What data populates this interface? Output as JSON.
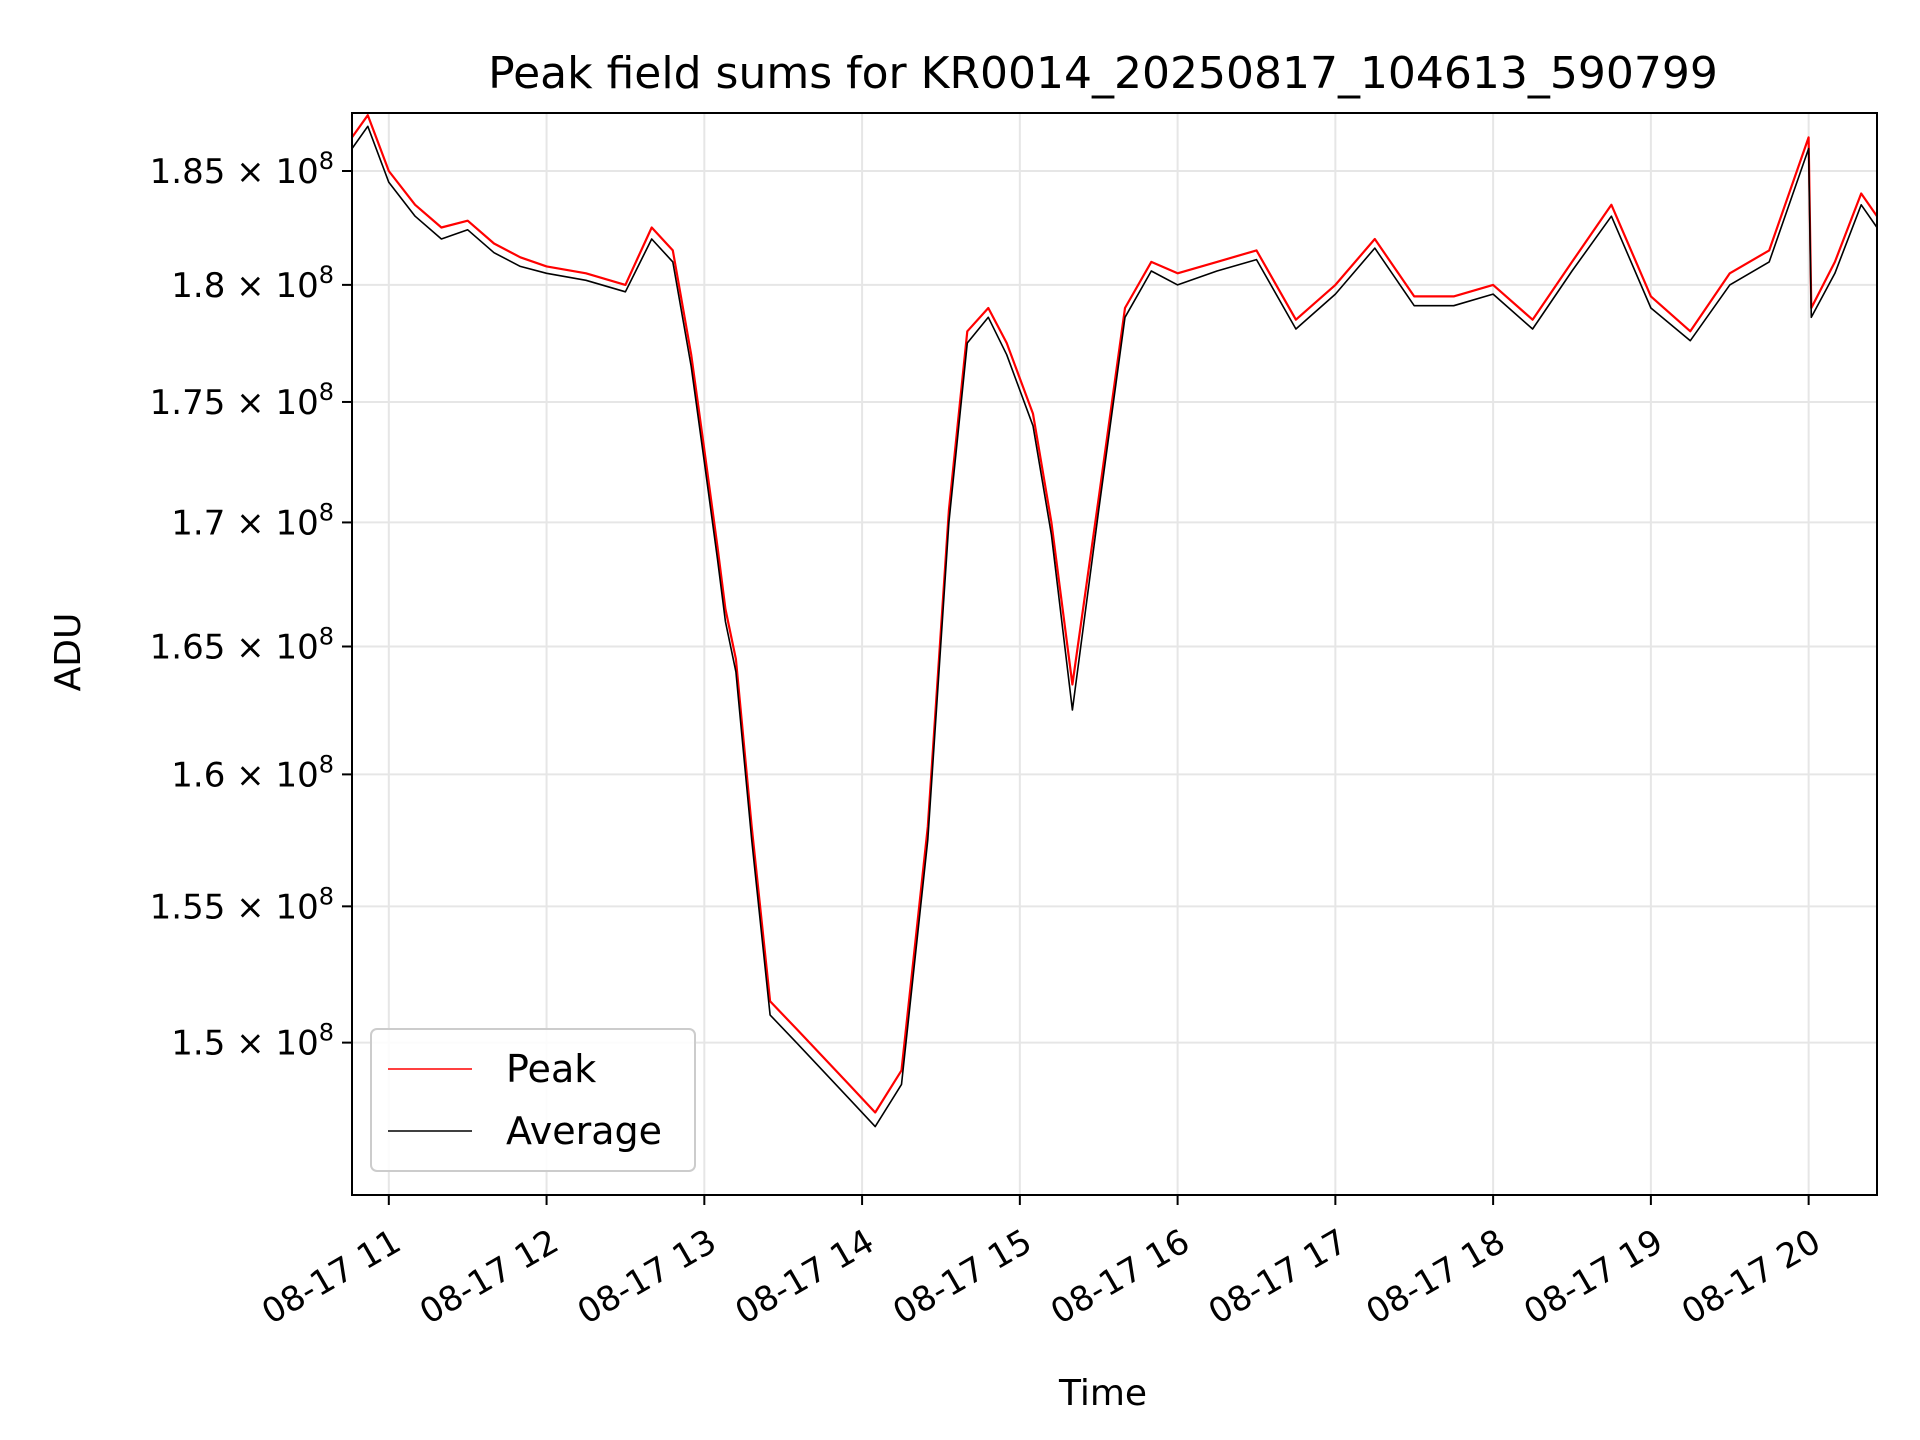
{
  "chart_data": {
    "type": "line",
    "title": "Peak field sums for KR0014_20250817_104613_590799",
    "xlabel": "Time",
    "ylabel": "ADU",
    "x_range": [
      "2025-08-17 10:46",
      "2025-08-17 20:26"
    ],
    "ylim": [
      144600000.0,
      187600000.0
    ],
    "x_tick_labels": [
      "08-17 11",
      "08-17 12",
      "08-17 13",
      "08-17 14",
      "08-17 15",
      "08-17 16",
      "08-17 17",
      "08-17 18",
      "08-17 19",
      "08-17 20"
    ],
    "x_ticks": [
      "2025-08-17 11:00",
      "2025-08-17 12:00",
      "2025-08-17 13:00",
      "2025-08-17 14:00",
      "2025-08-17 15:00",
      "2025-08-17 16:00",
      "2025-08-17 17:00",
      "2025-08-17 18:00",
      "2025-08-17 19:00",
      "2025-08-17 20:00"
    ],
    "y_ticks": [
      {
        "value": 150000000.0,
        "mantissa": "1.5",
        "exp": "8"
      },
      {
        "value": 155000000.0,
        "mantissa": "1.55",
        "exp": "8"
      },
      {
        "value": 160000000.0,
        "mantissa": "1.6",
        "exp": "8"
      },
      {
        "value": 165000000.0,
        "mantissa": "1.65",
        "exp": "8"
      },
      {
        "value": 170000000.0,
        "mantissa": "1.7",
        "exp": "8"
      },
      {
        "value": 175000000.0,
        "mantissa": "1.75",
        "exp": "8"
      },
      {
        "value": 180000000.0,
        "mantissa": "1.8",
        "exp": "8"
      },
      {
        "value": 185000000.0,
        "mantissa": "1.85",
        "exp": "8"
      }
    ],
    "y_scale": "log",
    "grid": true,
    "legend_position": "lower-left",
    "series": [
      {
        "name": "Peak",
        "color": "#ff0000",
        "x": [
          "2025-08-17 10:46",
          "2025-08-17 10:52",
          "2025-08-17 11:00",
          "2025-08-17 11:10",
          "2025-08-17 11:20",
          "2025-08-17 11:30",
          "2025-08-17 11:40",
          "2025-08-17 11:50",
          "2025-08-17 12:00",
          "2025-08-17 12:15",
          "2025-08-17 12:30",
          "2025-08-17 12:40",
          "2025-08-17 12:48",
          "2025-08-17 12:55",
          "2025-08-17 13:00",
          "2025-08-17 13:05",
          "2025-08-17 13:08",
          "2025-08-17 13:12",
          "2025-08-17 13:18",
          "2025-08-17 13:25",
          "2025-08-17 13:35",
          "2025-08-17 13:45",
          "2025-08-17 13:55",
          "2025-08-17 14:05",
          "2025-08-17 14:15",
          "2025-08-17 14:25",
          "2025-08-17 14:33",
          "2025-08-17 14:40",
          "2025-08-17 14:48",
          "2025-08-17 14:55",
          "2025-08-17 15:05",
          "2025-08-17 15:12",
          "2025-08-17 15:20",
          "2025-08-17 15:30",
          "2025-08-17 15:40",
          "2025-08-17 15:50",
          "2025-08-17 16:00",
          "2025-08-17 16:15",
          "2025-08-17 16:30",
          "2025-08-17 16:45",
          "2025-08-17 17:00",
          "2025-08-17 17:15",
          "2025-08-17 17:30",
          "2025-08-17 17:45",
          "2025-08-17 18:00",
          "2025-08-17 18:15",
          "2025-08-17 18:30",
          "2025-08-17 18:45",
          "2025-08-17 19:00",
          "2025-08-17 19:15",
          "2025-08-17 19:30",
          "2025-08-17 19:45",
          "2025-08-17 20:00",
          "2025-08-17 20:01",
          "2025-08-17 20:10",
          "2025-08-17 20:20",
          "2025-08-17 20:26"
        ],
        "values": [
          186500000.0,
          187500000.0,
          185000000.0,
          183500000.0,
          182500000.0,
          182800000.0,
          181800000.0,
          181200000.0,
          180800000.0,
          180500000.0,
          180000000.0,
          182500000.0,
          181500000.0,
          177000000.0,
          173000000.0,
          169000000.0,
          166500000.0,
          164500000.0,
          158000000.0,
          151500000.0,
          150500000.0,
          149500000.0,
          148500000.0,
          147500000.0,
          149000000.0,
          158000000.0,
          170500000.0,
          178000000.0,
          179000000.0,
          177500000.0,
          174500000.0,
          170000000.0,
          163500000.0,
          171000000.0,
          179000000.0,
          181000000.0,
          180500000.0,
          181000000.0,
          181500000.0,
          178500000.0,
          180000000.0,
          182000000.0,
          179500000.0,
          179500000.0,
          180000000.0,
          178500000.0,
          181000000.0,
          183500000.0,
          179500000.0,
          178000000.0,
          180500000.0,
          181500000.0,
          186500000.0,
          179000000.0,
          181000000.0,
          184000000.0,
          183000000.0
        ]
      },
      {
        "name": "Average",
        "color": "#000000",
        "x": [
          "2025-08-17 10:46",
          "2025-08-17 10:52",
          "2025-08-17 11:00",
          "2025-08-17 11:10",
          "2025-08-17 11:20",
          "2025-08-17 11:30",
          "2025-08-17 11:40",
          "2025-08-17 11:50",
          "2025-08-17 12:00",
          "2025-08-17 12:15",
          "2025-08-17 12:30",
          "2025-08-17 12:40",
          "2025-08-17 12:48",
          "2025-08-17 12:55",
          "2025-08-17 13:00",
          "2025-08-17 13:05",
          "2025-08-17 13:08",
          "2025-08-17 13:12",
          "2025-08-17 13:18",
          "2025-08-17 13:25",
          "2025-08-17 13:35",
          "2025-08-17 13:45",
          "2025-08-17 13:55",
          "2025-08-17 14:05",
          "2025-08-17 14:15",
          "2025-08-17 14:25",
          "2025-08-17 14:33",
          "2025-08-17 14:40",
          "2025-08-17 14:48",
          "2025-08-17 14:55",
          "2025-08-17 15:05",
          "2025-08-17 15:12",
          "2025-08-17 15:20",
          "2025-08-17 15:30",
          "2025-08-17 15:40",
          "2025-08-17 15:50",
          "2025-08-17 16:00",
          "2025-08-17 16:15",
          "2025-08-17 16:30",
          "2025-08-17 16:45",
          "2025-08-17 17:00",
          "2025-08-17 17:15",
          "2025-08-17 17:30",
          "2025-08-17 17:45",
          "2025-08-17 18:00",
          "2025-08-17 18:15",
          "2025-08-17 18:30",
          "2025-08-17 18:45",
          "2025-08-17 19:00",
          "2025-08-17 19:15",
          "2025-08-17 19:30",
          "2025-08-17 19:45",
          "2025-08-17 20:00",
          "2025-08-17 20:01",
          "2025-08-17 20:10",
          "2025-08-17 20:20",
          "2025-08-17 20:26"
        ],
        "values": [
          186000000.0,
          187000000.0,
          184500000.0,
          183000000.0,
          182000000.0,
          182400000.0,
          181400000.0,
          180800000.0,
          180500000.0,
          180200000.0,
          179700000.0,
          182000000.0,
          181000000.0,
          176500000.0,
          172500000.0,
          168500000.0,
          166000000.0,
          164000000.0,
          157500000.0,
          151000000.0,
          150000000.0,
          149000000.0,
          148000000.0,
          147000000.0,
          148500000.0,
          157500000.0,
          170000000.0,
          177500000.0,
          178600000.0,
          177000000.0,
          174000000.0,
          169500000.0,
          162500000.0,
          170500000.0,
          178600000.0,
          180600000.0,
          180000000.0,
          180600000.0,
          181100000.0,
          178100000.0,
          179600000.0,
          181600000.0,
          179100000.0,
          179100000.0,
          179600000.0,
          178100000.0,
          180600000.0,
          183000000.0,
          179000000.0,
          177600000.0,
          180000000.0,
          181000000.0,
          186000000.0,
          178600000.0,
          180500000.0,
          183500000.0,
          182500000.0
        ]
      }
    ]
  }
}
